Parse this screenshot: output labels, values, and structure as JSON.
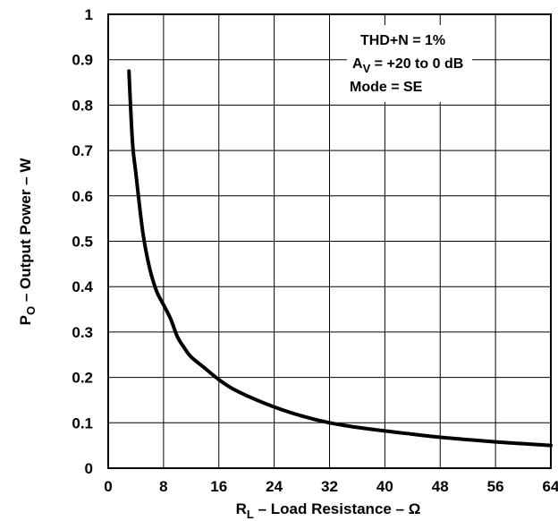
{
  "chart_data": {
    "type": "line",
    "xlabel_main": "R",
    "xlabel_sub": "L",
    "xlabel_rest": " – Load Resistance – Ω",
    "ylabel_main": "P",
    "ylabel_sub": "O",
    "ylabel_rest": " – Output Power – W",
    "xlim": [
      0,
      64
    ],
    "ylim": [
      0,
      1
    ],
    "x_ticks": [
      "0",
      "8",
      "16",
      "24",
      "32",
      "40",
      "48",
      "56",
      "64"
    ],
    "y_ticks": [
      "0",
      "0.1",
      "0.2",
      "0.3",
      "0.4",
      "0.5",
      "0.6",
      "0.7",
      "0.8",
      "0.9",
      "1"
    ],
    "grid": true,
    "annotations": {
      "line1": "THD+N = 1%",
      "line2_main": "A",
      "line2_sub": "V",
      "line2_rest": " = +20 to 0 dB",
      "line3": "Mode = SE"
    },
    "series": [
      {
        "x": [
          3,
          3.5,
          4,
          5,
          6,
          7,
          8,
          9,
          10,
          11,
          12,
          14,
          16,
          18,
          20,
          24,
          28,
          32,
          36,
          40,
          44,
          48,
          52,
          56,
          60,
          64
        ],
        "y": [
          0.875,
          0.72,
          0.65,
          0.52,
          0.44,
          0.39,
          0.36,
          0.33,
          0.29,
          0.265,
          0.245,
          0.22,
          0.195,
          0.175,
          0.16,
          0.135,
          0.115,
          0.1,
          0.09,
          0.082,
          0.075,
          0.068,
          0.063,
          0.058,
          0.054,
          0.05
        ]
      }
    ]
  }
}
